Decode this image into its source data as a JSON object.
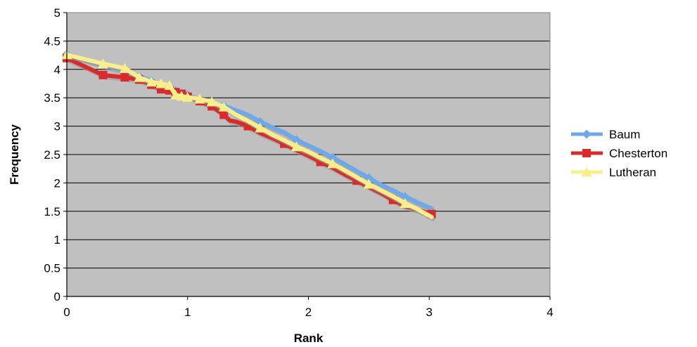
{
  "chart_data": {
    "type": "line",
    "xlabel": "Rank",
    "ylabel": "Frequency",
    "xlim": [
      0,
      4
    ],
    "ylim": [
      0,
      5
    ],
    "xticks": [
      "0",
      "1",
      "2",
      "3",
      "4"
    ],
    "yticks": [
      "0",
      "0.5",
      "1",
      "1.5",
      "2",
      "2.5",
      "3",
      "3.5",
      "4",
      "4.5",
      "5"
    ],
    "grid": "horizontal",
    "legend_position": "right",
    "plot_background": "#c0c0c0",
    "series": [
      {
        "name": "Baum",
        "color": "#6fa8e8",
        "marker": "diamond",
        "points": [
          [
            0,
            4.27
          ],
          [
            0.3,
            4.08
          ],
          [
            0.48,
            3.97
          ],
          [
            0.6,
            3.88
          ],
          [
            0.7,
            3.8
          ],
          [
            0.78,
            3.74
          ],
          [
            0.85,
            3.69
          ],
          [
            0.9,
            3.62
          ],
          [
            0.95,
            3.58
          ],
          [
            1.0,
            3.55
          ],
          [
            1.1,
            3.47
          ],
          [
            1.2,
            3.41
          ],
          [
            1.3,
            3.36
          ],
          [
            1.4,
            3.28
          ],
          [
            1.5,
            3.2
          ],
          [
            1.6,
            3.08
          ],
          [
            1.7,
            2.98
          ],
          [
            1.8,
            2.89
          ],
          [
            1.9,
            2.76
          ],
          [
            2.0,
            2.66
          ],
          [
            2.1,
            2.56
          ],
          [
            2.2,
            2.45
          ],
          [
            2.3,
            2.33
          ],
          [
            2.4,
            2.21
          ],
          [
            2.5,
            2.09
          ],
          [
            2.6,
            1.97
          ],
          [
            2.7,
            1.87
          ],
          [
            2.8,
            1.76
          ],
          [
            2.9,
            1.66
          ],
          [
            3.02,
            1.55
          ]
        ]
      },
      {
        "name": "Chesterton",
        "color": "#d92b2b",
        "marker": "square",
        "points": [
          [
            0,
            4.2
          ],
          [
            0.3,
            3.9
          ],
          [
            0.48,
            3.86
          ],
          [
            0.6,
            3.82
          ],
          [
            0.7,
            3.73
          ],
          [
            0.78,
            3.65
          ],
          [
            0.85,
            3.63
          ],
          [
            0.9,
            3.6
          ],
          [
            0.95,
            3.57
          ],
          [
            1.0,
            3.52
          ],
          [
            1.1,
            3.44
          ],
          [
            1.2,
            3.35
          ],
          [
            1.3,
            3.2
          ],
          [
            1.35,
            3.1
          ],
          [
            1.4,
            3.08
          ],
          [
            1.5,
            3.0
          ],
          [
            1.6,
            2.88
          ],
          [
            1.7,
            2.79
          ],
          [
            1.8,
            2.69
          ],
          [
            1.9,
            2.58
          ],
          [
            2.0,
            2.48
          ],
          [
            2.1,
            2.37
          ],
          [
            2.2,
            2.27
          ],
          [
            2.3,
            2.15
          ],
          [
            2.4,
            2.04
          ],
          [
            2.5,
            1.93
          ],
          [
            2.6,
            1.82
          ],
          [
            2.7,
            1.7
          ],
          [
            2.8,
            1.59
          ],
          [
            2.9,
            1.53
          ],
          [
            3.02,
            1.45
          ]
        ]
      },
      {
        "name": "Lutheran",
        "color": "#f8ef8c",
        "marker": "triangle",
        "points": [
          [
            0,
            4.26
          ],
          [
            0.3,
            4.1
          ],
          [
            0.48,
            4.02
          ],
          [
            0.6,
            3.86
          ],
          [
            0.7,
            3.78
          ],
          [
            0.78,
            3.75
          ],
          [
            0.85,
            3.72
          ],
          [
            0.9,
            3.55
          ],
          [
            0.95,
            3.53
          ],
          [
            1.0,
            3.51
          ],
          [
            1.1,
            3.48
          ],
          [
            1.2,
            3.43
          ],
          [
            1.3,
            3.34
          ],
          [
            1.4,
            3.2
          ],
          [
            1.5,
            3.09
          ],
          [
            1.6,
            2.97
          ],
          [
            1.7,
            2.85
          ],
          [
            1.8,
            2.75
          ],
          [
            1.9,
            2.64
          ],
          [
            2.0,
            2.55
          ],
          [
            2.1,
            2.44
          ],
          [
            2.2,
            2.34
          ],
          [
            2.3,
            2.22
          ],
          [
            2.4,
            2.1
          ],
          [
            2.5,
            1.98
          ],
          [
            2.6,
            1.87
          ],
          [
            2.7,
            1.76
          ],
          [
            2.8,
            1.64
          ],
          [
            2.9,
            1.54
          ],
          [
            3.02,
            1.4
          ]
        ]
      }
    ]
  }
}
